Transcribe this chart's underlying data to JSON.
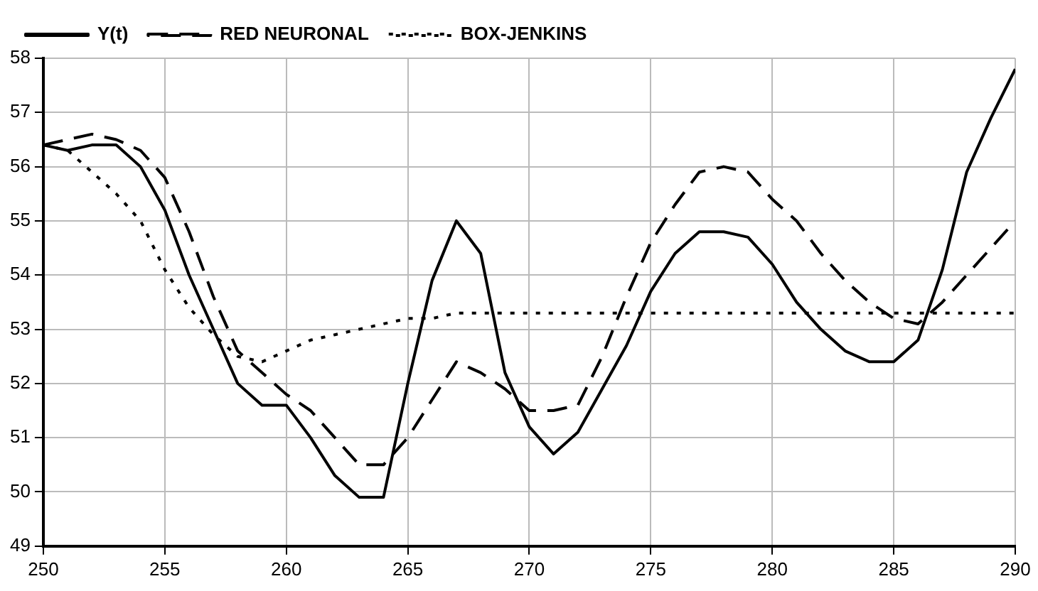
{
  "chart_data": {
    "type": "line",
    "x": [
      250,
      251,
      252,
      253,
      254,
      255,
      256,
      257,
      258,
      259,
      260,
      261,
      262,
      263,
      264,
      265,
      266,
      267,
      268,
      269,
      270,
      271,
      272,
      273,
      274,
      275,
      276,
      277,
      278,
      279,
      280,
      281,
      282,
      283,
      284,
      285,
      286,
      287,
      288,
      289,
      290
    ],
    "series": [
      {
        "name": "Y(t)",
        "color": "#000000",
        "line_style": "solid",
        "values": [
          56.4,
          56.3,
          56.4,
          56.4,
          56.0,
          55.2,
          54.0,
          53.0,
          52.0,
          51.6,
          51.6,
          51.0,
          50.3,
          49.9,
          49.9,
          52.0,
          53.9,
          55.0,
          54.4,
          52.2,
          51.2,
          50.7,
          51.1,
          51.9,
          52.7,
          53.7,
          54.4,
          54.8,
          54.8,
          54.7,
          54.2,
          53.5,
          53.0,
          52.6,
          52.4,
          52.4,
          52.8,
          54.1,
          55.9,
          56.9,
          57.8
        ]
      },
      {
        "name": "RED NEURONAL",
        "color": "#000000",
        "line_style": "dashed",
        "values": [
          56.4,
          56.5,
          56.6,
          56.5,
          56.3,
          55.8,
          54.8,
          53.6,
          52.6,
          52.2,
          51.8,
          51.5,
          51.0,
          50.5,
          50.5,
          51.0,
          51.7,
          52.4,
          52.2,
          51.9,
          51.5,
          51.5,
          51.6,
          52.5,
          53.6,
          54.6,
          55.3,
          55.9,
          56.0,
          55.9,
          55.4,
          55.0,
          54.4,
          53.9,
          53.5,
          53.2,
          53.1,
          53.5,
          54.0,
          54.5,
          55.0
        ]
      },
      {
        "name": "BOX-JENKINS",
        "color": "#000000",
        "line_style": "dotted",
        "values": [
          56.4,
          56.3,
          55.9,
          55.5,
          55.0,
          54.1,
          53.4,
          52.9,
          52.5,
          52.4,
          52.6,
          52.8,
          52.9,
          53.0,
          53.1,
          53.2,
          53.2,
          53.3,
          53.3,
          53.3,
          53.3,
          53.3,
          53.3,
          53.3,
          53.3,
          53.3,
          53.3,
          53.3,
          53.3,
          53.3,
          53.3,
          53.3,
          53.3,
          53.3,
          53.3,
          53.3,
          53.3,
          53.3,
          53.3,
          53.3,
          53.3
        ]
      }
    ],
    "xlim": [
      250,
      290
    ],
    "xticks": [
      250,
      255,
      260,
      265,
      270,
      275,
      280,
      285,
      290
    ],
    "ylim": [
      49,
      58
    ],
    "yticks": [
      49,
      50,
      51,
      52,
      53,
      54,
      55,
      56,
      57,
      58
    ],
    "grid": true,
    "legend": "top left",
    "marker": "none"
  }
}
